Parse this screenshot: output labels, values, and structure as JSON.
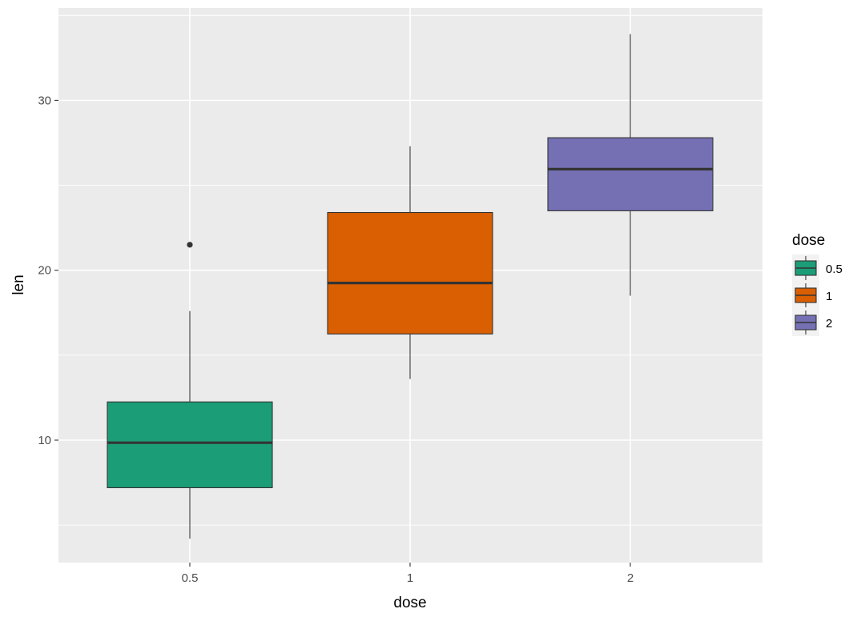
{
  "chart_data": {
    "type": "boxplot",
    "title": "",
    "xlabel": "dose",
    "ylabel": "len",
    "categories": [
      "0.5",
      "1",
      "2"
    ],
    "ylim": [
      2.5,
      36
    ],
    "yticks": [
      10,
      20,
      30
    ],
    "ytick_labels": [
      "10",
      "20",
      "30"
    ],
    "grid": true,
    "boxes": [
      {
        "category": "0.5",
        "min": 4.2,
        "q1": 7.2,
        "median": 9.85,
        "q3": 12.25,
        "max": 17.6,
        "outliers": [
          21.5
        ]
      },
      {
        "category": "1",
        "min": 13.6,
        "q1": 16.25,
        "median": 19.25,
        "q3": 23.4,
        "max": 27.3,
        "outliers": []
      },
      {
        "category": "2",
        "min": 18.5,
        "q1": 23.5,
        "median": 25.95,
        "q3": 27.8,
        "max": 33.9,
        "outliers": []
      }
    ],
    "legend": {
      "title": "dose",
      "position": "right",
      "entries": [
        "0.5",
        "1",
        "2"
      ]
    }
  },
  "colors": {
    "0.5": "#1b9e77",
    "1": "#d95f02",
    "2": "#7570b3",
    "panel": "#ebebeb",
    "grid": "#ffffff",
    "box_border": "#333333"
  }
}
